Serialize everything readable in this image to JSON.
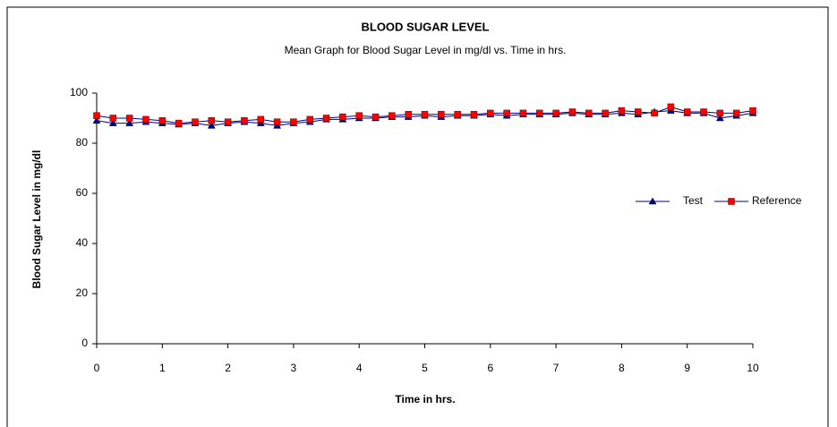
{
  "chart_data": {
    "type": "line",
    "title": "BLOOD SUGAR LEVEL",
    "subtitle": "Mean Graph for Blood Sugar Level in mg/dl vs. Time in hrs.",
    "x_label": "Time in hrs.",
    "y_label": "Blood Sugar Level  in mg/dl",
    "x": [
      0,
      0.25,
      0.5,
      0.75,
      1,
      1.25,
      1.5,
      1.75,
      2,
      2.25,
      2.5,
      2.75,
      3,
      3.25,
      3.5,
      3.75,
      4,
      4.25,
      4.5,
      4.75,
      5,
      5.25,
      5.5,
      5.75,
      6,
      6.25,
      6.5,
      6.75,
      7,
      7.25,
      7.5,
      7.75,
      8,
      8.25,
      8.5,
      8.75,
      9,
      9.25,
      9.5,
      9.75,
      10
    ],
    "series": [
      {
        "name": "Test",
        "color": "#000080",
        "marker": "triangle",
        "values": [
          89,
          88,
          88,
          88.5,
          88,
          87.5,
          88,
          87,
          88,
          88.5,
          88,
          87,
          88,
          88.5,
          89.5,
          89.5,
          90,
          90,
          90.5,
          90.5,
          91,
          90.5,
          91,
          91,
          91.5,
          91,
          91.5,
          91.5,
          91.5,
          92,
          91.5,
          91.5,
          92,
          91.5,
          92.5,
          93,
          92,
          92,
          90,
          91,
          92
        ]
      },
      {
        "name": "Reference",
        "color": "#ff0000",
        "marker": "square",
        "values": [
          91,
          90,
          90,
          89.5,
          89,
          88,
          88.5,
          89,
          88.5,
          89,
          89.5,
          88.5,
          88.5,
          89.5,
          90,
          90.5,
          91,
          90.5,
          91,
          91.5,
          91.5,
          91.5,
          91.5,
          91.5,
          92,
          92,
          92,
          92,
          92,
          92.5,
          92,
          92,
          93,
          92.5,
          92,
          94.5,
          92.5,
          92.5,
          92,
          92,
          93
        ]
      }
    ],
    "xlim": [
      0,
      10
    ],
    "xticks": [
      0,
      1,
      2,
      3,
      4,
      5,
      6,
      7,
      8,
      9,
      10
    ],
    "ylim": [
      0,
      100
    ],
    "yticks": [
      0,
      20,
      40,
      60,
      80,
      100
    ],
    "grid": false,
    "legend": "right"
  }
}
